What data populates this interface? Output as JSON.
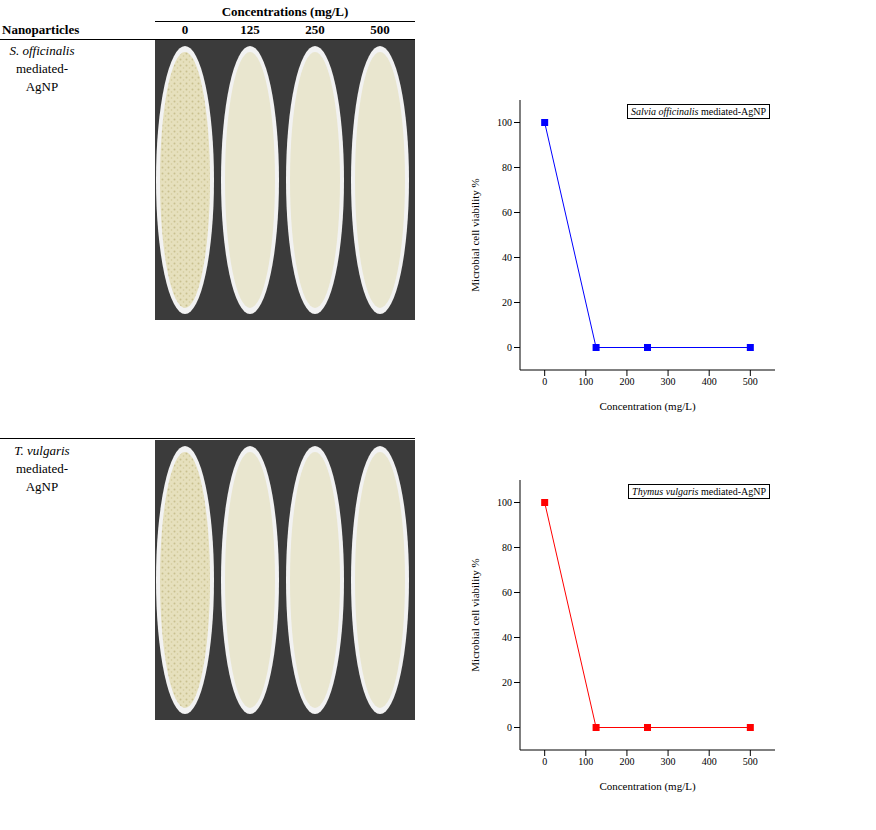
{
  "table": {
    "header": {
      "nanoparticles": "Nanoparticles",
      "concentrations_title": "Concentrations (mg/L)",
      "concentrations": [
        0,
        125,
        250,
        500
      ]
    },
    "rows": [
      {
        "name_italic": "S. officinalis",
        "name": "mediated-AgNP"
      },
      {
        "name_italic": "T. vulgaris",
        "name": "mediated-AgNP"
      }
    ]
  },
  "chart_data": [
    {
      "type": "line",
      "title": "Salvia officinalis mediated-AgNP",
      "x_label": "Concentration (mg/L)",
      "y_label": "Microbial cell viability %",
      "x": [
        0,
        125,
        250,
        500
      ],
      "values": [
        100,
        0,
        0,
        0
      ],
      "color": "#0000ff",
      "marker": "square",
      "line_style": "solid",
      "xlim": [
        -60,
        560
      ],
      "xticks": [
        0,
        100,
        200,
        300,
        400,
        500
      ],
      "ylim": [
        -10,
        110
      ],
      "yticks": [
        0,
        20,
        40,
        60,
        80,
        100
      ]
    },
    {
      "type": "line",
      "title": "Thymus vulgaris mediated-AgNP",
      "x_label": "Concentration (mg/L)",
      "y_label": "Microbial cell viability %",
      "x": [
        0,
        125,
        250,
        500
      ],
      "values": [
        100,
        0,
        0,
        0
      ],
      "color": "#ff0000",
      "marker": "square",
      "line_style": "solid",
      "xlim": [
        -60,
        560
      ],
      "xticks": [
        0,
        100,
        200,
        300,
        400,
        500
      ],
      "ylim": [
        -10,
        110
      ],
      "yticks": [
        0,
        20,
        40,
        60,
        80,
        100
      ]
    }
  ]
}
